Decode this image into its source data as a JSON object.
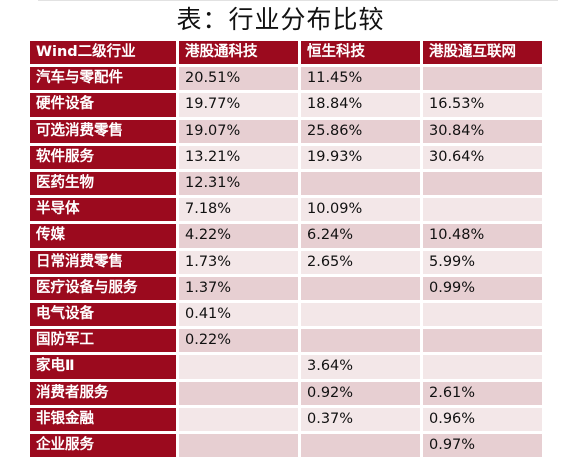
{
  "title": "表：行业分布比较",
  "table": {
    "headers": [
      "Wind二级行业",
      "港股通科技",
      "恒生科技",
      "港股通互联网"
    ],
    "rows": [
      {
        "industry": "汽车与零配件",
        "hk_tech": "20.51%",
        "hs_tech": "11.45%",
        "hk_internet": ""
      },
      {
        "industry": "硬件设备",
        "hk_tech": "19.77%",
        "hs_tech": "18.84%",
        "hk_internet": "16.53%"
      },
      {
        "industry": "可选消费零售",
        "hk_tech": "19.07%",
        "hs_tech": "25.86%",
        "hk_internet": "30.84%"
      },
      {
        "industry": "软件服务",
        "hk_tech": "13.21%",
        "hs_tech": "19.93%",
        "hk_internet": "30.64%"
      },
      {
        "industry": "医药生物",
        "hk_tech": "12.31%",
        "hs_tech": "",
        "hk_internet": ""
      },
      {
        "industry": "半导体",
        "hk_tech": "7.18%",
        "hs_tech": "10.09%",
        "hk_internet": ""
      },
      {
        "industry": "传媒",
        "hk_tech": "4.22%",
        "hs_tech": "6.24%",
        "hk_internet": "10.48%"
      },
      {
        "industry": "日常消费零售",
        "hk_tech": "1.73%",
        "hs_tech": "2.65%",
        "hk_internet": "5.99%"
      },
      {
        "industry": "医疗设备与服务",
        "hk_tech": "1.37%",
        "hs_tech": "",
        "hk_internet": "0.99%"
      },
      {
        "industry": "电气设备",
        "hk_tech": "0.41%",
        "hs_tech": "",
        "hk_internet": ""
      },
      {
        "industry": "国防军工",
        "hk_tech": "0.22%",
        "hs_tech": "",
        "hk_internet": ""
      },
      {
        "industry": "家电Ⅱ",
        "hk_tech": "",
        "hs_tech": "3.64%",
        "hk_internet": ""
      },
      {
        "industry": "消费者服务",
        "hk_tech": "",
        "hs_tech": "0.92%",
        "hk_internet": "2.61%"
      },
      {
        "industry": "非银金融",
        "hk_tech": "",
        "hs_tech": "0.37%",
        "hk_internet": "0.96%"
      },
      {
        "industry": "企业服务",
        "hk_tech": "",
        "hs_tech": "",
        "hk_internet": "0.97%"
      }
    ]
  },
  "colors": {
    "header_background": "#9b0a1e",
    "header_text": "#ffffff",
    "row_band_dark": "#e7cfd2",
    "row_band_light": "#f3e7e8"
  }
}
